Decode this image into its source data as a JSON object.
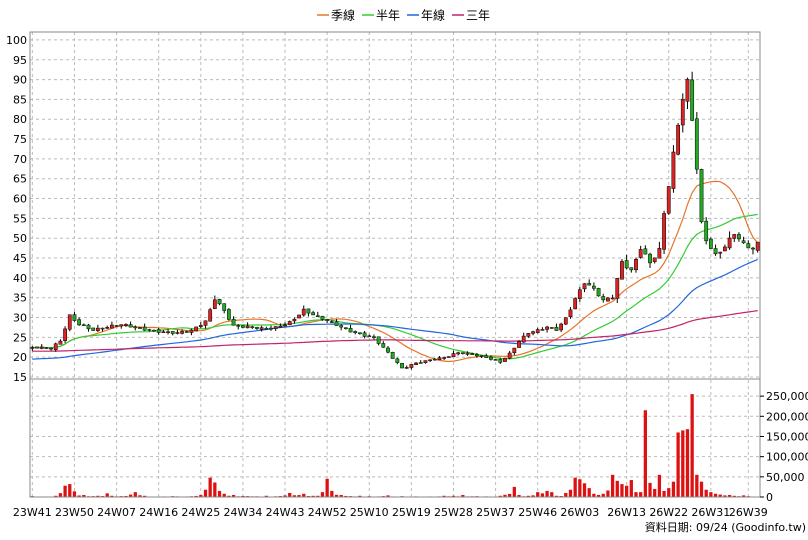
{
  "chart_data": {
    "type": "line",
    "legend": [
      {
        "name": "季線",
        "color": "#e8742a"
      },
      {
        "name": "半年",
        "color": "#33cc33"
      },
      {
        "name": "年線",
        "color": "#2266dd"
      },
      {
        "name": "三年",
        "color": "#c0246a"
      }
    ],
    "legend_position": "top-center",
    "source_text": "資料日期: 09/24 (Goodinfo.tw)",
    "grid": true,
    "price_panel": {
      "type": "candlestick",
      "ylim": [
        15,
        102
      ],
      "yticks": [
        15,
        20,
        25,
        30,
        35,
        40,
        45,
        50,
        55,
        60,
        65,
        70,
        75,
        80,
        85,
        90,
        95,
        100
      ],
      "up_color": "#dd2222",
      "down_color": "#22aa22"
    },
    "volume_panel": {
      "type": "bar",
      "ylim": [
        0,
        290000
      ],
      "yticks": [
        "0",
        "50,000",
        "100,000",
        "150,000",
        "200,000",
        "250,000"
      ],
      "ytick_values": [
        0,
        50000,
        100000,
        150000,
        200000,
        250000
      ],
      "bar_color": "#dd1111"
    },
    "x_categories": [
      "23W41",
      "23W50",
      "24W07",
      "24W16",
      "24W25",
      "24W34",
      "24W43",
      "24W52",
      "25W10",
      "25W19",
      "25W28",
      "25W37",
      "25W46",
      "26W03",
      "26W13",
      "26W22",
      "26W31",
      "26W39"
    ],
    "x_count": 156,
    "x_tick_indices": [
      0,
      9,
      18,
      27,
      36,
      45,
      54,
      63,
      72,
      81,
      90,
      99,
      108,
      117,
      127,
      136,
      145,
      153
    ],
    "close_anchors": [
      [
        0,
        22.5
      ],
      [
        4,
        22
      ],
      [
        6,
        24
      ],
      [
        8,
        30.5
      ],
      [
        10,
        28.5
      ],
      [
        13,
        27
      ],
      [
        16,
        27.5
      ],
      [
        19,
        28
      ],
      [
        22,
        27.5
      ],
      [
        25,
        27
      ],
      [
        28,
        26.5
      ],
      [
        31,
        26
      ],
      [
        34,
        26.5
      ],
      [
        37,
        29
      ],
      [
        39,
        35
      ],
      [
        41,
        32
      ],
      [
        43,
        28
      ],
      [
        46,
        27.5
      ],
      [
        49,
        27
      ],
      [
        52,
        27.5
      ],
      [
        55,
        29
      ],
      [
        58,
        32
      ],
      [
        61,
        30
      ],
      [
        64,
        28.5
      ],
      [
        67,
        27
      ],
      [
        70,
        26
      ],
      [
        73,
        25
      ],
      [
        76,
        21
      ],
      [
        79,
        17
      ],
      [
        82,
        18.5
      ],
      [
        85,
        19.5
      ],
      [
        88,
        20
      ],
      [
        91,
        21
      ],
      [
        94,
        20.5
      ],
      [
        97,
        20
      ],
      [
        100,
        19
      ],
      [
        102,
        21
      ],
      [
        104,
        24
      ],
      [
        106,
        26
      ],
      [
        108,
        26.5
      ],
      [
        110,
        27.5
      ],
      [
        112,
        27
      ],
      [
        114,
        30
      ],
      [
        116,
        35
      ],
      [
        118,
        39
      ],
      [
        120,
        37
      ],
      [
        122,
        34
      ],
      [
        124,
        35
      ],
      [
        126,
        44
      ],
      [
        128,
        42
      ],
      [
        130,
        48
      ],
      [
        132,
        44
      ],
      [
        134,
        47
      ],
      [
        135,
        56
      ],
      [
        136,
        63
      ],
      [
        138,
        78
      ],
      [
        139,
        85
      ],
      [
        140,
        89
      ],
      [
        141,
        80
      ],
      [
        142,
        68
      ],
      [
        143,
        54
      ],
      [
        144,
        50
      ],
      [
        146,
        46
      ],
      [
        148,
        48
      ],
      [
        150,
        51
      ],
      [
        152,
        48
      ],
      [
        154,
        47
      ],
      [
        155,
        48.5
      ]
    ],
    "volume_anchors": [
      [
        0,
        2000
      ],
      [
        5,
        3000
      ],
      [
        7,
        28000
      ],
      [
        8,
        32000
      ],
      [
        9,
        14000
      ],
      [
        11,
        5000
      ],
      [
        14,
        3000
      ],
      [
        16,
        9000
      ],
      [
        17,
        3000
      ],
      [
        21,
        6000
      ],
      [
        22,
        12000
      ],
      [
        24,
        3000
      ],
      [
        30,
        2000
      ],
      [
        36,
        5000
      ],
      [
        37,
        18000
      ],
      [
        38,
        48000
      ],
      [
        39,
        36000
      ],
      [
        40,
        15000
      ],
      [
        41,
        8000
      ],
      [
        43,
        5000
      ],
      [
        50,
        3000
      ],
      [
        54,
        4000
      ],
      [
        55,
        10000
      ],
      [
        58,
        8000
      ],
      [
        61,
        3000
      ],
      [
        62,
        12000
      ],
      [
        63,
        45000
      ],
      [
        64,
        15000
      ],
      [
        66,
        5000
      ],
      [
        70,
        3000
      ],
      [
        72,
        2000
      ],
      [
        76,
        4000
      ],
      [
        79,
        2000
      ],
      [
        88,
        3000
      ],
      [
        90,
        3000
      ],
      [
        92,
        5000
      ],
      [
        95,
        2000
      ],
      [
        100,
        3000
      ],
      [
        103,
        25000
      ],
      [
        104,
        5000
      ],
      [
        106,
        3000
      ],
      [
        108,
        12000
      ],
      [
        109,
        9000
      ],
      [
        110,
        15000
      ],
      [
        111,
        12000
      ],
      [
        112,
        3000
      ],
      [
        114,
        10000
      ],
      [
        115,
        18000
      ],
      [
        116,
        48000
      ],
      [
        117,
        44000
      ],
      [
        118,
        34000
      ],
      [
        119,
        22000
      ],
      [
        120,
        8000
      ],
      [
        121,
        5000
      ],
      [
        122,
        8000
      ],
      [
        124,
        55000
      ],
      [
        125,
        40000
      ],
      [
        126,
        32000
      ],
      [
        127,
        28000
      ],
      [
        128,
        42000
      ],
      [
        129,
        12000
      ],
      [
        130,
        12000
      ],
      [
        131,
        215000
      ],
      [
        132,
        35000
      ],
      [
        133,
        20000
      ],
      [
        134,
        55000
      ],
      [
        135,
        15000
      ],
      [
        136,
        22000
      ],
      [
        137,
        38000
      ],
      [
        138,
        160000
      ],
      [
        139,
        165000
      ],
      [
        140,
        168000
      ],
      [
        141,
        255000
      ],
      [
        142,
        55000
      ],
      [
        143,
        38000
      ],
      [
        144,
        18000
      ],
      [
        145,
        12000
      ],
      [
        146,
        8000
      ],
      [
        147,
        6000
      ],
      [
        148,
        4000
      ],
      [
        149,
        5000
      ],
      [
        150,
        3000
      ],
      [
        152,
        4000
      ],
      [
        153,
        2000
      ],
      [
        155,
        1000
      ]
    ]
  }
}
